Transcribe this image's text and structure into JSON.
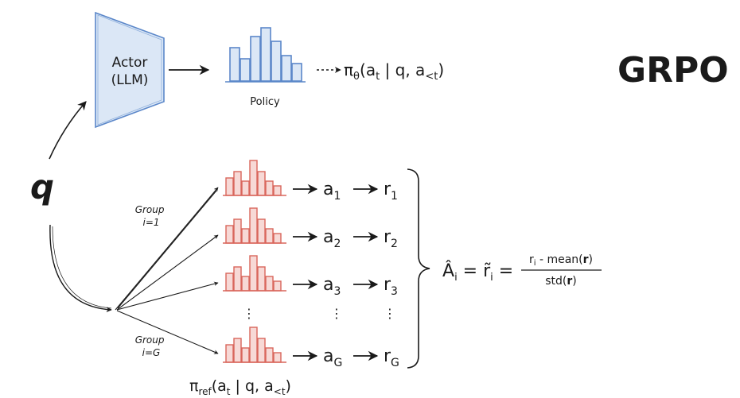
{
  "title": "GRPO",
  "query": "q",
  "actor": {
    "line1": "Actor",
    "line2": "(LLM)"
  },
  "policy": {
    "label": "Policy",
    "formula": {
      "pi": "π",
      "sub": "θ",
      "args": "(a",
      "t": "t",
      "mid": " | q, a",
      "lt": "<t",
      "close": ")"
    }
  },
  "groups": {
    "top_label": {
      "line1": "Group",
      "line2": "i=1"
    },
    "bottom_label": {
      "line1": "Group",
      "line2": "i=G"
    },
    "rows": [
      {
        "a_sub": "1",
        "r_sub": "1"
      },
      {
        "a_sub": "2",
        "r_sub": "2"
      },
      {
        "a_sub": "3",
        "r_sub": "3"
      },
      {
        "a_sub": "G",
        "r_sub": "G"
      }
    ],
    "ellipsis": "⋮"
  },
  "reference": {
    "pi": "π",
    "sub": "ref",
    "args": "(a",
    "t": "t",
    "mid": " | q, a",
    "lt": "<t",
    "close": ")"
  },
  "advantage": {
    "lhs": "Â",
    "i": "i",
    "eq": " = ",
    "tilde_r": "r̃",
    "numerator": {
      "r": "r",
      "i": "i",
      "rest": " - mean(",
      "bold": "r",
      "close": ")"
    },
    "denominator": {
      "std": "std(",
      "bold": "r",
      "close": ")"
    }
  },
  "colors": {
    "blue": "#5b87c9",
    "blue_fill": "#dbe7f6",
    "red": "#d9665c",
    "red_fill": "#f7d9d6",
    "ink": "#1a1a1a"
  }
}
